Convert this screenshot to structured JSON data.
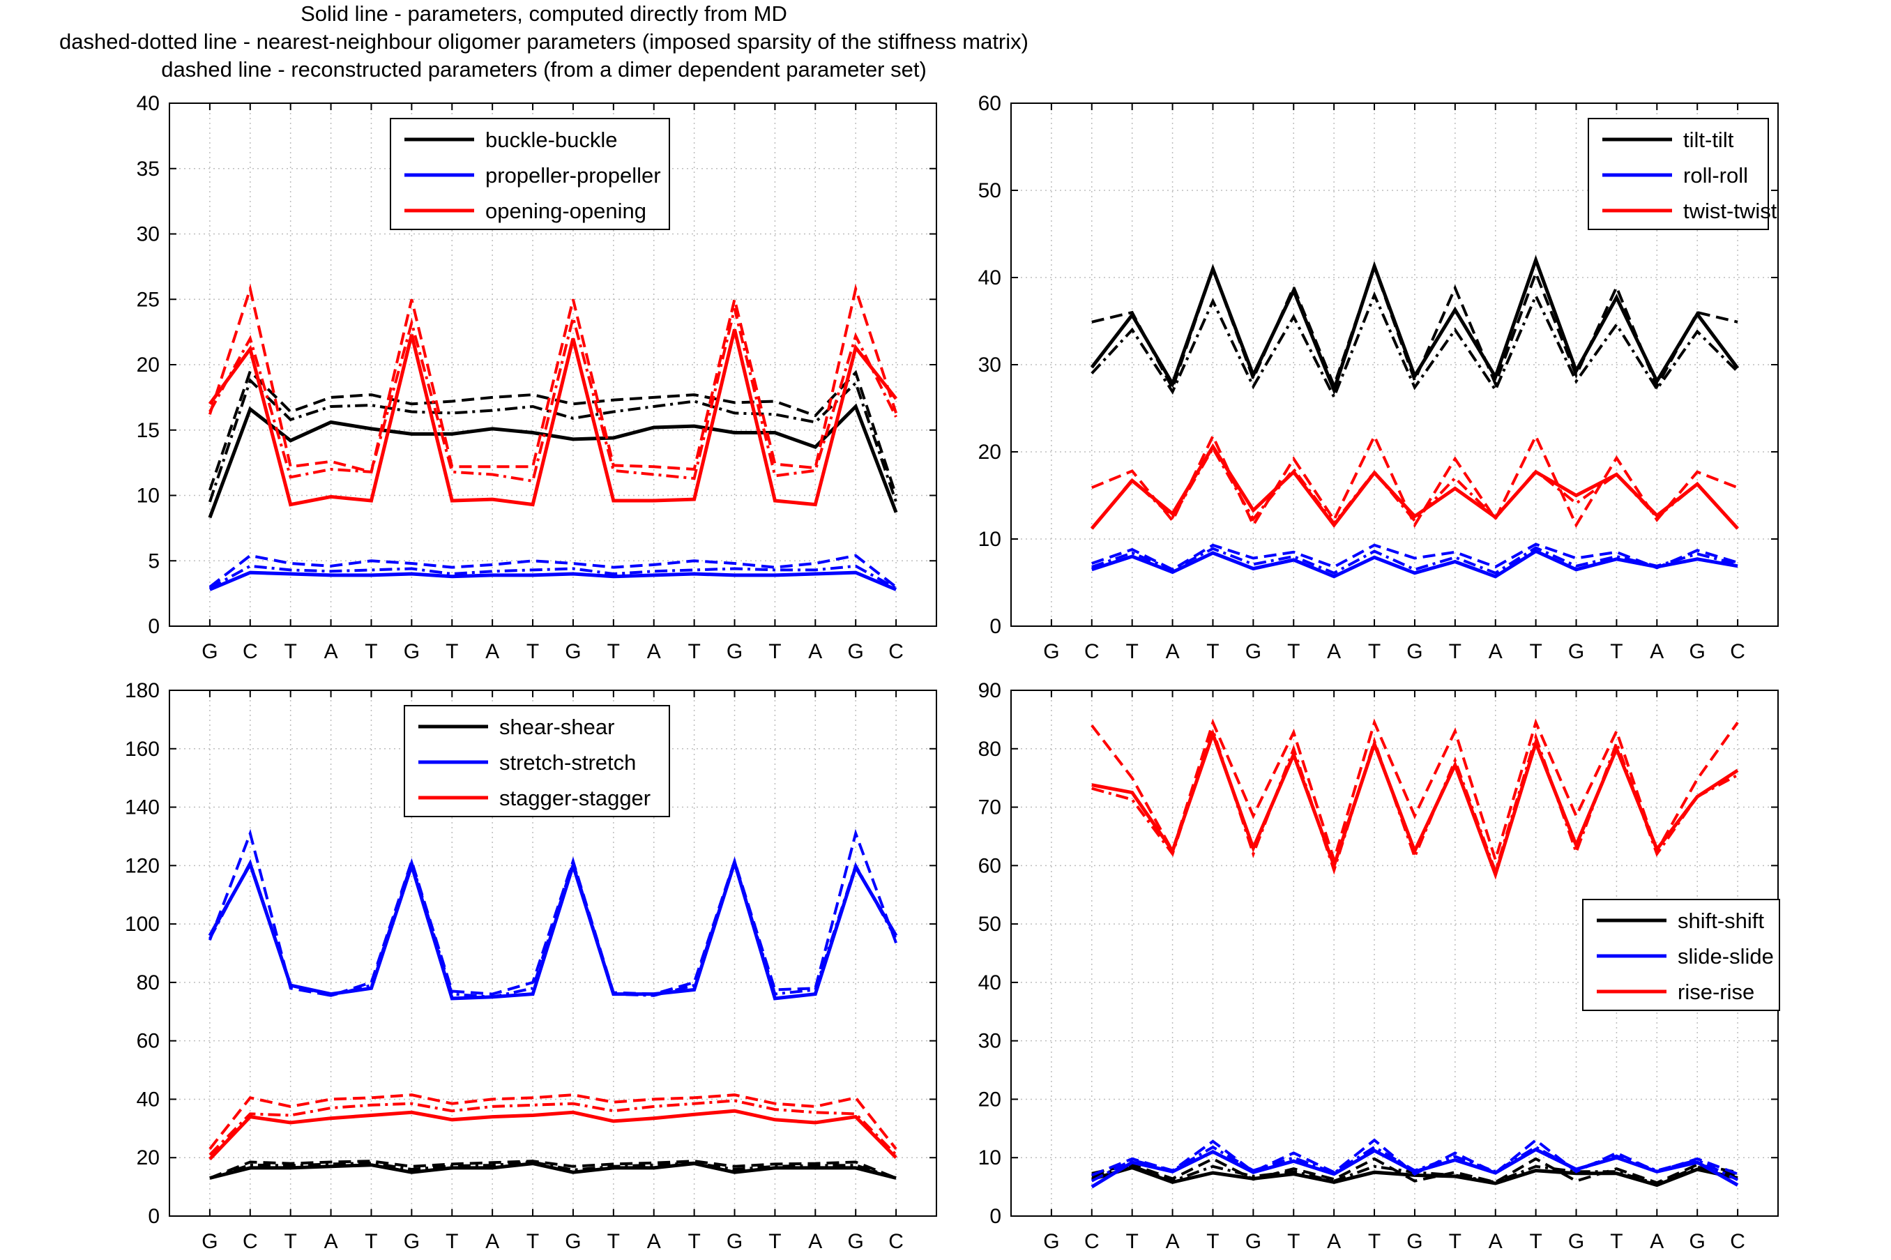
{
  "header": {
    "line1": "Solid line - parameters, computed directly from MD",
    "line2": "dashed-dotted line - nearest-neighbour oligomer parameters (imposed sparsity of the stiffness matrix)",
    "line3": "dashed line - reconstructed parameters (from a dimer dependent parameter set)"
  },
  "styles": {
    "solid": "computed directly from MD",
    "dashdot": "nearest-neighbour oligomer parameters",
    "dashed": "reconstructed parameters"
  },
  "colors": {
    "black": "#000000",
    "blue": "#0000ff",
    "red": "#ff0000",
    "grid": "#bdbdbd"
  },
  "chart_data": [
    {
      "type": "line",
      "id": "bp-rotational",
      "title": "",
      "xlabel": "",
      "ylabel": "",
      "categories": [
        "G",
        "C",
        "T",
        "A",
        "T",
        "G",
        "T",
        "A",
        "T",
        "G",
        "T",
        "A",
        "T",
        "G",
        "T",
        "A",
        "G",
        "C"
      ],
      "ylim": [
        0,
        40
      ],
      "yticks": [
        0,
        5,
        10,
        15,
        20,
        25,
        30,
        35,
        40
      ],
      "grid": true,
      "legend_position": "top-center",
      "series": [
        {
          "name": "buckle-buckle",
          "color": "#000000",
          "style": "solid",
          "values": [
            8.3,
            16.6,
            14.2,
            15.6,
            15.1,
            14.7,
            14.7,
            15.1,
            14.8,
            14.3,
            14.4,
            15.2,
            15.3,
            14.8,
            14.8,
            13.7,
            16.8,
            8.7
          ]
        },
        {
          "name": "buckle-buckle",
          "color": "#000000",
          "style": "dashdot",
          "values": [
            9.5,
            18.8,
            15.8,
            16.8,
            16.9,
            16.4,
            16.3,
            16.5,
            16.8,
            15.9,
            16.4,
            16.8,
            17.2,
            16.3,
            16.2,
            15.6,
            18.6,
            9.5
          ]
        },
        {
          "name": "buckle-buckle",
          "color": "#000000",
          "style": "dashed",
          "values": [
            10.4,
            19.5,
            16.4,
            17.5,
            17.7,
            17.0,
            17.2,
            17.5,
            17.7,
            17.0,
            17.3,
            17.5,
            17.7,
            17.1,
            17.2,
            16.1,
            19.4,
            10.0
          ]
        },
        {
          "name": "propeller-propeller",
          "color": "#0000ff",
          "style": "solid",
          "values": [
            2.8,
            4.1,
            4.0,
            3.9,
            3.9,
            4.0,
            3.8,
            3.9,
            3.9,
            4.0,
            3.8,
            3.9,
            4.0,
            3.9,
            3.9,
            4.0,
            4.1,
            2.8
          ]
        },
        {
          "name": "propeller-propeller",
          "color": "#0000ff",
          "style": "dashdot",
          "values": [
            2.9,
            4.6,
            4.3,
            4.2,
            4.3,
            4.4,
            4.0,
            4.2,
            4.3,
            4.4,
            4.0,
            4.2,
            4.3,
            4.4,
            4.3,
            4.3,
            4.6,
            2.9
          ]
        },
        {
          "name": "propeller-propeller",
          "color": "#0000ff",
          "style": "dashed",
          "values": [
            3.0,
            5.4,
            4.8,
            4.6,
            5.0,
            4.8,
            4.5,
            4.7,
            5.0,
            4.8,
            4.5,
            4.7,
            5.0,
            4.8,
            4.5,
            4.8,
            5.4,
            3.0
          ]
        },
        {
          "name": "opening-opening",
          "color": "#ff0000",
          "style": "solid",
          "values": [
            17.0,
            21.2,
            9.3,
            9.9,
            9.6,
            22.3,
            9.6,
            9.7,
            9.3,
            22.0,
            9.6,
            9.6,
            9.7,
            22.7,
            9.6,
            9.3,
            21.3,
            17.4
          ]
        },
        {
          "name": "opening-opening",
          "color": "#ff0000",
          "style": "dashdot",
          "values": [
            16.4,
            22.0,
            11.4,
            12.0,
            11.8,
            23.2,
            11.8,
            11.6,
            11.1,
            23.6,
            11.9,
            11.6,
            11.3,
            24.3,
            11.5,
            11.9,
            22.2,
            16.0
          ]
        },
        {
          "name": "opening-opening",
          "color": "#ff0000",
          "style": "dashed",
          "values": [
            16.2,
            25.8,
            12.2,
            12.6,
            11.8,
            25.0,
            12.2,
            12.2,
            12.2,
            25.0,
            12.3,
            12.2,
            12.0,
            25.0,
            12.4,
            12.1,
            25.8,
            16.3
          ]
        }
      ]
    },
    {
      "type": "line",
      "id": "step-rotational",
      "title": "",
      "xlabel": "",
      "ylabel": "",
      "categories": [
        "G",
        "C",
        "T",
        "A",
        "T",
        "G",
        "T",
        "A",
        "T",
        "G",
        "T",
        "A",
        "T",
        "G",
        "T",
        "A",
        "G",
        "C"
      ],
      "ylim": [
        0,
        60
      ],
      "yticks": [
        0,
        10,
        20,
        30,
        40,
        50,
        60
      ],
      "grid": true,
      "legend_position": "top-right",
      "series": [
        {
          "name": "tilt-tilt",
          "color": "#000000",
          "style": "solid",
          "values": [
            null,
            29.7,
            35.7,
            27.8,
            41.0,
            28.8,
            38.5,
            27.1,
            41.3,
            28.7,
            36.3,
            28.6,
            42.0,
            29.3,
            37.7,
            28.1,
            35.8,
            29.6
          ]
        },
        {
          "name": "tilt-tilt",
          "color": "#000000",
          "style": "dashdot",
          "values": [
            null,
            29.0,
            34.0,
            26.9,
            37.3,
            27.5,
            35.5,
            26.3,
            38.0,
            27.4,
            34.0,
            27.1,
            37.9,
            28.1,
            34.6,
            27.2,
            33.8,
            29.2
          ]
        },
        {
          "name": "tilt-tilt",
          "color": "#000000",
          "style": "dashed",
          "values": [
            null,
            34.9,
            36.0,
            27.3,
            41.0,
            28.4,
            38.9,
            27.6,
            41.2,
            28.2,
            38.8,
            27.8,
            40.5,
            28.8,
            38.9,
            27.5,
            36.0,
            34.9
          ]
        },
        {
          "name": "roll-roll",
          "color": "#0000ff",
          "style": "solid",
          "values": [
            null,
            6.5,
            8.0,
            6.2,
            8.4,
            6.6,
            7.6,
            5.7,
            7.9,
            6.1,
            7.4,
            5.7,
            8.6,
            6.5,
            7.7,
            6.8,
            7.7,
            6.9
          ]
        },
        {
          "name": "roll-roll",
          "color": "#0000ff",
          "style": "dashdot",
          "values": [
            null,
            6.8,
            8.4,
            6.5,
            8.9,
            7.1,
            8.0,
            6.1,
            8.6,
            6.5,
            7.9,
            6.1,
            9.0,
            6.9,
            8.0,
            6.9,
            8.3,
            7.1
          ]
        },
        {
          "name": "roll-roll",
          "color": "#0000ff",
          "style": "dashed",
          "values": [
            null,
            7.2,
            8.8,
            6.5,
            9.3,
            7.8,
            8.5,
            6.8,
            9.3,
            7.8,
            8.5,
            6.8,
            9.4,
            7.8,
            8.5,
            6.7,
            8.7,
            7.3
          ]
        },
        {
          "name": "twist-twist",
          "color": "#ff0000",
          "style": "solid",
          "values": [
            null,
            11.2,
            16.7,
            12.9,
            20.6,
            13.3,
            17.7,
            11.6,
            17.6,
            12.6,
            15.8,
            12.5,
            17.7,
            15.0,
            17.4,
            12.7,
            16.3,
            11.2
          ]
        },
        {
          "name": "twist-twist",
          "color": "#ff0000",
          "style": "dashdot",
          "values": [
            null,
            11.2,
            16.8,
            12.5,
            20.4,
            12.3,
            18.0,
            11.8,
            17.7,
            12.1,
            17.0,
            12.4,
            17.8,
            14.1,
            17.4,
            12.5,
            16.3,
            11.2
          ]
        },
        {
          "name": "twist-twist",
          "color": "#ff0000",
          "style": "dashed",
          "values": [
            null,
            15.9,
            17.8,
            12.1,
            21.8,
            11.6,
            19.2,
            12.2,
            21.8,
            11.6,
            19.2,
            12.3,
            21.8,
            11.6,
            19.3,
            12.2,
            17.7,
            15.9
          ]
        }
      ]
    },
    {
      "type": "line",
      "id": "bp-translational",
      "title": "",
      "xlabel": "",
      "ylabel": "",
      "categories": [
        "G",
        "C",
        "T",
        "A",
        "T",
        "G",
        "T",
        "A",
        "T",
        "G",
        "T",
        "A",
        "T",
        "G",
        "T",
        "A",
        "G",
        "C"
      ],
      "ylim": [
        0,
        180
      ],
      "yticks": [
        0,
        20,
        40,
        60,
        80,
        100,
        120,
        140,
        160,
        180
      ],
      "grid": true,
      "legend_position": "top-center",
      "series": [
        {
          "name": "shear-shear",
          "color": "#000000",
          "style": "solid",
          "values": [
            13,
            16.5,
            16.5,
            17,
            17.5,
            15,
            16.5,
            16.5,
            18,
            15,
            16.5,
            16.5,
            18,
            15,
            16.5,
            16.5,
            16.5,
            13
          ]
        },
        {
          "name": "shear-shear",
          "color": "#000000",
          "style": "dashdot",
          "values": [
            13,
            17.5,
            17.3,
            17.8,
            18.2,
            16,
            17.2,
            17.4,
            18.5,
            15.8,
            17,
            17.5,
            18.2,
            16,
            17,
            17.3,
            17.4,
            13
          ]
        },
        {
          "name": "shear-shear",
          "color": "#000000",
          "style": "dashed",
          "values": [
            13,
            18.5,
            18,
            18.5,
            18.8,
            17,
            17.8,
            18.3,
            18.8,
            17,
            17.8,
            18.2,
            18.8,
            17,
            17.8,
            18,
            18.5,
            13
          ]
        },
        {
          "name": "stretch-stretch",
          "color": "#0000ff",
          "style": "solid",
          "values": [
            96,
            120.5,
            79,
            76,
            78,
            120,
            74.5,
            75,
            76,
            120,
            76,
            76,
            77.5,
            121,
            74.5,
            76,
            119.5,
            96
          ]
        },
        {
          "name": "stretch-stretch",
          "color": "#0000ff",
          "style": "dashdot",
          "values": [
            95,
            121,
            79,
            75.5,
            79,
            121,
            76,
            75,
            78,
            121,
            76,
            75.5,
            79,
            121,
            76,
            77.5,
            120,
            95
          ]
        },
        {
          "name": "stretch-stretch",
          "color": "#0000ff",
          "style": "dashed",
          "values": [
            94.5,
            131,
            78,
            75.5,
            80,
            121.5,
            77,
            76,
            80,
            121.5,
            76.5,
            76,
            80,
            121.5,
            77.5,
            78,
            131,
            93.5
          ]
        },
        {
          "name": "stagger-stagger",
          "color": "#ff0000",
          "style": "solid",
          "values": [
            19.5,
            34,
            32,
            33.5,
            34.5,
            35.5,
            33,
            34,
            34.5,
            35.5,
            32.5,
            33.5,
            34.8,
            36,
            33,
            32,
            34,
            20
          ]
        },
        {
          "name": "stagger-stagger",
          "color": "#ff0000",
          "style": "dashdot",
          "values": [
            21,
            35,
            34.5,
            37,
            38,
            38.5,
            36,
            37.5,
            38,
            38.5,
            36,
            37.5,
            38.5,
            39.5,
            36.5,
            35.5,
            35,
            21
          ]
        },
        {
          "name": "stagger-stagger",
          "color": "#ff0000",
          "style": "dashed",
          "values": [
            23,
            40.5,
            37.5,
            40,
            40.5,
            41.5,
            38.5,
            40,
            40.5,
            41.5,
            39,
            40,
            40.5,
            41.5,
            38.5,
            37.5,
            40.5,
            23
          ]
        }
      ]
    },
    {
      "type": "line",
      "id": "step-translational",
      "title": "",
      "xlabel": "",
      "ylabel": "",
      "categories": [
        "G",
        "C",
        "T",
        "A",
        "T",
        "G",
        "T",
        "A",
        "T",
        "G",
        "T",
        "A",
        "T",
        "G",
        "T",
        "A",
        "G",
        "C"
      ],
      "ylim": [
        0,
        90
      ],
      "yticks": [
        0,
        10,
        20,
        30,
        40,
        50,
        60,
        70,
        80,
        90
      ],
      "grid": true,
      "legend_position": "middle-right",
      "series": [
        {
          "name": "shift-shift",
          "color": "#000000",
          "style": "solid",
          "values": [
            null,
            6.3,
            8.3,
            5.8,
            7.4,
            6.4,
            7.2,
            5.8,
            7.5,
            7.0,
            6.8,
            5.6,
            7.8,
            7.3,
            7.3,
            5.3,
            8.0,
            6.5
          ]
        },
        {
          "name": "shift-shift",
          "color": "#000000",
          "style": "dashdot",
          "values": [
            null,
            6.8,
            8.6,
            6.0,
            8.5,
            6.8,
            7.6,
            6.0,
            8.5,
            7.5,
            7.0,
            5.8,
            8.5,
            7.6,
            7.6,
            5.5,
            8.4,
            7.0
          ]
        },
        {
          "name": "shift-shift",
          "color": "#000000",
          "style": "dashed",
          "values": [
            null,
            7.3,
            8.8,
            6.4,
            9.8,
            6.3,
            8.1,
            6.3,
            9.8,
            6.0,
            7.5,
            5.8,
            9.8,
            6.0,
            8.1,
            5.7,
            8.8,
            7.5
          ]
        },
        {
          "name": "slide-slide",
          "color": "#0000ff",
          "style": "solid",
          "values": [
            null,
            5.0,
            9.2,
            7.6,
            11.0,
            7.5,
            9.4,
            7.2,
            11.2,
            7.6,
            9.6,
            7.4,
            11.4,
            8.0,
            10.0,
            7.6,
            9.2,
            5.3
          ]
        },
        {
          "name": "slide-slide",
          "color": "#0000ff",
          "style": "dashdot",
          "values": [
            null,
            6.0,
            9.6,
            7.8,
            11.8,
            7.8,
            10.0,
            7.4,
            11.8,
            7.8,
            10.2,
            7.6,
            11.8,
            8.0,
            10.3,
            7.8,
            9.6,
            6.2
          ]
        },
        {
          "name": "slide-slide",
          "color": "#0000ff",
          "style": "dashed",
          "values": [
            null,
            7.0,
            9.8,
            7.8,
            12.8,
            7.6,
            10.8,
            7.5,
            13.0,
            7.2,
            10.8,
            7.4,
            13.0,
            7.6,
            10.8,
            7.6,
            9.8,
            7.2
          ]
        },
        {
          "name": "rise-rise",
          "color": "#ff0000",
          "style": "solid",
          "values": [
            null,
            73.8,
            72.5,
            62.5,
            82.5,
            63.0,
            79.0,
            60.0,
            80.8,
            62.5,
            77.2,
            58.5,
            81.0,
            63.5,
            80.0,
            62.8,
            71.8,
            76.3
          ]
        },
        {
          "name": "rise-rise",
          "color": "#ff0000",
          "style": "dashdot",
          "values": [
            null,
            73.2,
            71.3,
            62.0,
            83.2,
            62.0,
            80.0,
            59.2,
            81.3,
            61.5,
            78.0,
            59.0,
            82.0,
            62.3,
            81.0,
            62.0,
            71.8,
            75.5
          ]
        },
        {
          "name": "rise-rise",
          "color": "#ff0000",
          "style": "dashed",
          "values": [
            null,
            84.0,
            75.0,
            62.5,
            84.5,
            68.5,
            82.8,
            61.0,
            84.5,
            68.5,
            83.0,
            61.0,
            84.5,
            68.5,
            83.0,
            62.5,
            74.8,
            84.5
          ]
        }
      ]
    }
  ]
}
